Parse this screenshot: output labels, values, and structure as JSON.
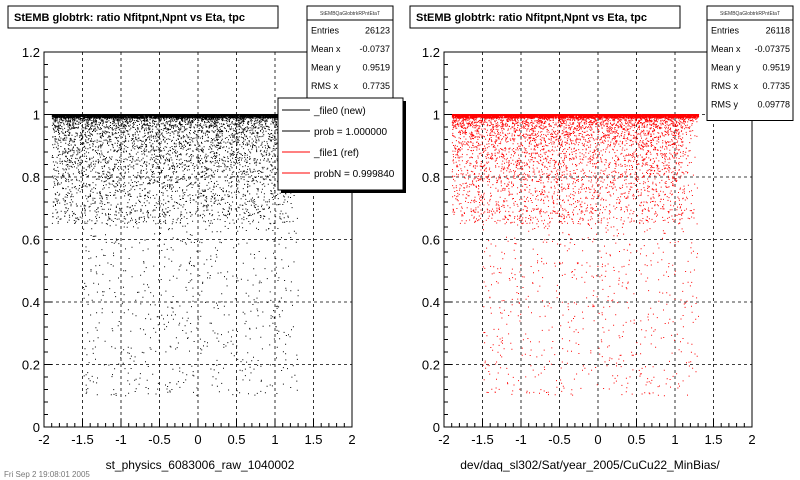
{
  "footer_text": "Fri Sep 2 19:08:01 2005",
  "chart_data": [
    {
      "type": "scatter",
      "title": "StEMB globtrk: ratio Nfitpnt,Npnt vs Eta, tpc",
      "xlabel": "st_physics_6083006_raw_1040002",
      "ylabel": "",
      "xlim": [
        -2,
        2
      ],
      "ylim": [
        0,
        1.2
      ],
      "xticks": [
        "-2",
        "-1.5",
        "-1",
        "-0.5",
        "0",
        "0.5",
        "1",
        "1.5",
        "2"
      ],
      "yticks": [
        "0",
        "0.2",
        "0.4",
        "0.6",
        "0.8",
        "1",
        "1.2"
      ],
      "grid": true,
      "color": "#000000",
      "stats": {
        "name": "StEMBQaGlobtrkRPntEtaT",
        "rows": [
          {
            "label": "Entries",
            "value": "26123"
          },
          {
            "label": "Mean x",
            "value": "-0.0737"
          },
          {
            "label": "Mean y",
            "value": "0.9519"
          },
          {
            "label": "RMS x",
            "value": "0.7735"
          }
        ]
      },
      "legend": {
        "placement": "top-right",
        "entries": [
          {
            "label": "_file0 (new)",
            "color": "#000000"
          },
          {
            "label": "prob = 1.000000",
            "color": "#000000"
          },
          {
            "label": "_file1 (ref)",
            "color": "#ff0000"
          },
          {
            "label": "probN = 0.999840",
            "color": "#ff0000"
          }
        ]
      },
      "density": {
        "y_band": 1.0,
        "x_range": [
          -1.9,
          1.3
        ]
      }
    },
    {
      "type": "scatter",
      "title": "StEMB globtrk: ratio Nfitpnt,Npnt vs Eta, tpc",
      "xlabel": "dev/daq_sl302/Sat/year_2005/CuCu22_MinBias/",
      "ylabel": "",
      "xlim": [
        -2,
        2
      ],
      "ylim": [
        0,
        1.2
      ],
      "xticks": [
        "-2",
        "-1.5",
        "-1",
        "-0.5",
        "0",
        "0.5",
        "1",
        "1.5",
        "2"
      ],
      "yticks": [
        "0",
        "0.2",
        "0.4",
        "0.6",
        "0.8",
        "1",
        "1.2"
      ],
      "grid": true,
      "color": "#ff0000",
      "stats": {
        "name": "StEMBQaGlobtrkRPntEtaT",
        "rows": [
          {
            "label": "Entries",
            "value": "26118"
          },
          {
            "label": "Mean x",
            "value": "-0.07375"
          },
          {
            "label": "Mean y",
            "value": "0.9519"
          },
          {
            "label": "RMS x",
            "value": "0.7735"
          },
          {
            "label": "RMS y",
            "value": "0.09778"
          }
        ]
      },
      "density": {
        "y_band": 1.0,
        "x_range": [
          -1.9,
          1.3
        ]
      }
    }
  ]
}
